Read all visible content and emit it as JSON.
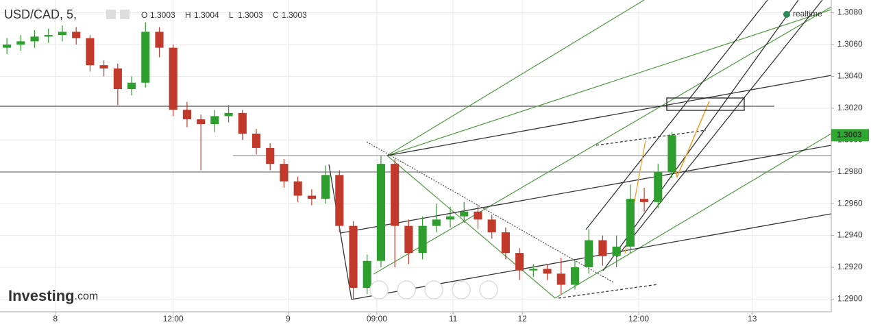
{
  "chart_data": {
    "type": "candlestick",
    "title": "USD/CAD, 5,",
    "ohlc": [
      {
        "label": "O",
        "value": 1.3003
      },
      {
        "label": "H",
        "value": 1.3004
      },
      {
        "label": "L",
        "value": 1.3003
      },
      {
        "label": "C",
        "value": 1.3003
      }
    ],
    "status": "realtime",
    "brand": "Investing",
    "brand_suffix": ".com",
    "up_color": "#2e9e2e",
    "down_color": "#c0392b",
    "grid": true,
    "last_price": 1.3003,
    "x": [
      0,
      1,
      2,
      3,
      4,
      5,
      6,
      7,
      8,
      9,
      10,
      11,
      12,
      13,
      14,
      15,
      16,
      17,
      18,
      19,
      20,
      21,
      22,
      23,
      24,
      25,
      26,
      27,
      28,
      29,
      30,
      31,
      32,
      33,
      34,
      35,
      36,
      37,
      38,
      39,
      40,
      41,
      42,
      43,
      44,
      45,
      46,
      47,
      48
    ],
    "open": [
      1.3058,
      1.306,
      1.3062,
      1.3065,
      1.3066,
      1.3068,
      1.3064,
      1.3047,
      1.3045,
      1.3032,
      1.3036,
      1.3068,
      1.3058,
      1.3019,
      1.3013,
      1.301,
      1.3015,
      1.3017,
      1.3004,
      1.2995,
      1.2985,
      1.2974,
      1.2965,
      1.2963,
      1.2978,
      1.2946,
      1.2907,
      1.2924,
      1.2985,
      1.2946,
      1.2929,
      1.2946,
      1.295,
      1.2952,
      1.2955,
      1.295,
      1.2942,
      1.2929,
      1.2918,
      1.2919,
      1.2916,
      1.2909,
      1.292,
      1.2937,
      1.2927,
      1.2933,
      1.2963,
      1.2961,
      1.298
    ],
    "high": [
      1.3064,
      1.3066,
      1.3069,
      1.307,
      1.3072,
      1.3071,
      1.3066,
      1.305,
      1.3048,
      1.304,
      1.3074,
      1.3071,
      1.306,
      1.3024,
      1.3016,
      1.3019,
      1.3022,
      1.3019,
      1.3007,
      1.2998,
      1.2988,
      1.2977,
      1.2969,
      1.2984,
      1.2981,
      1.2949,
      1.2928,
      1.299,
      1.2988,
      1.295,
      1.2952,
      1.296,
      1.2958,
      1.2961,
      1.2959,
      1.2953,
      1.2945,
      1.2932,
      1.2922,
      1.2922,
      1.2926,
      1.2924,
      1.2944,
      1.294,
      1.294,
      1.2972,
      1.297,
      1.2985,
      1.3005
    ],
    "low": [
      1.3054,
      1.3056,
      1.3058,
      1.3061,
      1.3062,
      1.306,
      1.3043,
      1.304,
      1.3022,
      1.3028,
      1.3033,
      1.3052,
      1.3015,
      1.3008,
      1.2981,
      1.3005,
      1.3011,
      1.3,
      1.2991,
      1.2981,
      1.297,
      1.2961,
      1.2959,
      1.296,
      1.2942,
      1.29,
      1.2903,
      1.292,
      1.292,
      1.2922,
      1.2925,
      1.2942,
      1.2945,
      1.2948,
      1.2944,
      1.2938,
      1.2925,
      1.2912,
      1.2914,
      1.2912,
      1.2903,
      1.2906,
      1.2916,
      1.2921,
      1.292,
      1.2929,
      1.2955,
      1.2957,
      1.2976
    ],
    "close": [
      1.306,
      1.3062,
      1.3065,
      1.3066,
      1.3068,
      1.3064,
      1.3047,
      1.3045,
      1.3032,
      1.3036,
      1.3068,
      1.3058,
      1.3019,
      1.3013,
      1.301,
      1.3015,
      1.3017,
      1.3004,
      1.2995,
      1.2985,
      1.2974,
      1.2965,
      1.2963,
      1.2978,
      1.2946,
      1.2907,
      1.2924,
      1.2985,
      1.2946,
      1.2929,
      1.2946,
      1.295,
      1.2952,
      1.2955,
      1.295,
      1.2942,
      1.2929,
      1.2918,
      1.2919,
      1.2916,
      1.2909,
      1.292,
      1.2937,
      1.2927,
      1.2933,
      1.2963,
      1.2961,
      1.298,
      1.3003
    ],
    "xlim": [
      -0.5,
      59.5
    ],
    "xticks": [
      {
        "value": 3.5,
        "label": "8"
      },
      {
        "value": 12,
        "label": "12:00"
      },
      {
        "value": 20.3,
        "label": "9"
      },
      {
        "value": 26.7,
        "label": "09:00"
      },
      {
        "value": 32.2,
        "label": "11"
      },
      {
        "value": 37.2,
        "label": "12"
      },
      {
        "value": 45.6,
        "label": "12:00"
      },
      {
        "value": 53.8,
        "label": "13"
      }
    ],
    "ylim": [
      1.2892,
      1.3088
    ],
    "yticks": [
      {
        "value": 1.29,
        "label": "1.2900"
      },
      {
        "value": 1.292,
        "label": "1.2920"
      },
      {
        "value": 1.294,
        "label": "1.2940"
      },
      {
        "value": 1.296,
        "label": "1.2960"
      },
      {
        "value": 1.298,
        "label": "1.2980"
      },
      {
        "value": 1.3,
        "label": "1.3000"
      },
      {
        "value": 1.302,
        "label": "1.3020"
      },
      {
        "value": 1.304,
        "label": "1.3040"
      },
      {
        "value": 1.306,
        "label": "1.3060"
      },
      {
        "value": 1.308,
        "label": "1.3080"
      }
    ]
  }
}
